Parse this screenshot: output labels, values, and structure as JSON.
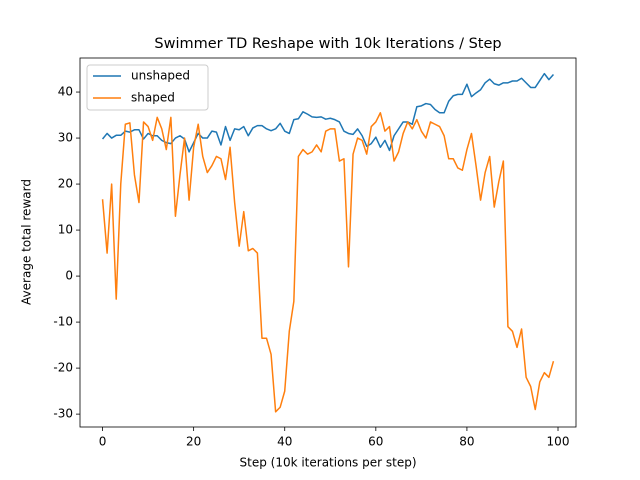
{
  "chart_data": {
    "type": "line",
    "title": "Swimmer TD Reshape with 10k Iterations / Step",
    "x_label": "Step (10k iterations per step)",
    "y_label": "Average total reward",
    "x": [
      0,
      1,
      2,
      3,
      4,
      5,
      6,
      7,
      8,
      9,
      10,
      11,
      12,
      13,
      14,
      15,
      16,
      17,
      18,
      19,
      20,
      21,
      22,
      23,
      24,
      25,
      26,
      27,
      28,
      29,
      30,
      31,
      32,
      33,
      34,
      35,
      36,
      37,
      38,
      39,
      40,
      41,
      42,
      43,
      44,
      45,
      46,
      47,
      48,
      49,
      50,
      51,
      52,
      53,
      54,
      55,
      56,
      57,
      58,
      59,
      60,
      61,
      62,
      63,
      64,
      65,
      66,
      67,
      68,
      69,
      70,
      71,
      72,
      73,
      74,
      75,
      76,
      77,
      78,
      79,
      80,
      81,
      82,
      83,
      84,
      85,
      86,
      87,
      88,
      89,
      90,
      91,
      92,
      93,
      94,
      95,
      96,
      97,
      98,
      99
    ],
    "series": [
      {
        "name": "unshaped",
        "color": "#1f77b4",
        "values": [
          29.8,
          31,
          30,
          30.6,
          30.6,
          31.5,
          31.3,
          31.8,
          31.8,
          29.8,
          31,
          30.5,
          30.5,
          29.5,
          29,
          28.8,
          30,
          30.5,
          29.8,
          27,
          29,
          31,
          30,
          30,
          31.5,
          31.3,
          28.5,
          32.5,
          29.5,
          32,
          31.8,
          32.5,
          30.5,
          32.2,
          32.7,
          32.7,
          32,
          31.6,
          32,
          33.2,
          31.5,
          31,
          34,
          34.2,
          35.7,
          35.2,
          34.6,
          34.5,
          34.6,
          34.1,
          34.3,
          34,
          33.5,
          31.5,
          31,
          30.8,
          32,
          30.5,
          28.2,
          28.8,
          30.2,
          28,
          29.5,
          27.3,
          30.5,
          32,
          33.5,
          33.5,
          33,
          36.8,
          37,
          37.5,
          37.3,
          36.2,
          35.5,
          35.5,
          38,
          39.2,
          39.5,
          39.5,
          41.7,
          39,
          39.8,
          40.5,
          42,
          42.8,
          41.8,
          41.5,
          42,
          42,
          42.4,
          42.4,
          43,
          42,
          41,
          41,
          42.5,
          44,
          42.7,
          43.8
        ]
      },
      {
        "name": "shaped",
        "color": "#ff7f0e",
        "values": [
          16.7,
          5,
          20,
          -5,
          20,
          33,
          33.3,
          22,
          16,
          33.5,
          32.5,
          29.5,
          34.5,
          32,
          27.5,
          34.5,
          13,
          22,
          30,
          16.5,
          28,
          33,
          26,
          22.5,
          24,
          26,
          25.5,
          21,
          28,
          16,
          6.5,
          14,
          5.5,
          6,
          5,
          -13.5,
          -13.5,
          -17,
          -29.5,
          -28.5,
          -25,
          -12,
          -5.5,
          26,
          27.5,
          26.5,
          27,
          28.5,
          27,
          31.5,
          32,
          32,
          25,
          25.5,
          2,
          26.5,
          30,
          29.5,
          26.5,
          32.5,
          33.5,
          35.5,
          31.5,
          32.5,
          25,
          27,
          31,
          33.5,
          32,
          34,
          31.5,
          30,
          33.5,
          33,
          32.5,
          30.5,
          25.5,
          25.5,
          23.5,
          23,
          27.5,
          31,
          24,
          16.5,
          22.5,
          26,
          15,
          20.5,
          25,
          -11,
          -12,
          -15.5,
          -11.5,
          -22,
          -24,
          -29,
          -23,
          -21,
          -22,
          -18.5
        ]
      }
    ],
    "xlim": [
      -4.95,
      103.95
    ],
    "ylim": [
      -32.8,
      47.4
    ],
    "xticks": [
      0,
      20,
      40,
      60,
      80,
      100
    ],
    "yticks": [
      -30,
      -20,
      -10,
      0,
      10,
      20,
      30,
      40
    ],
    "legend": "upper left"
  }
}
